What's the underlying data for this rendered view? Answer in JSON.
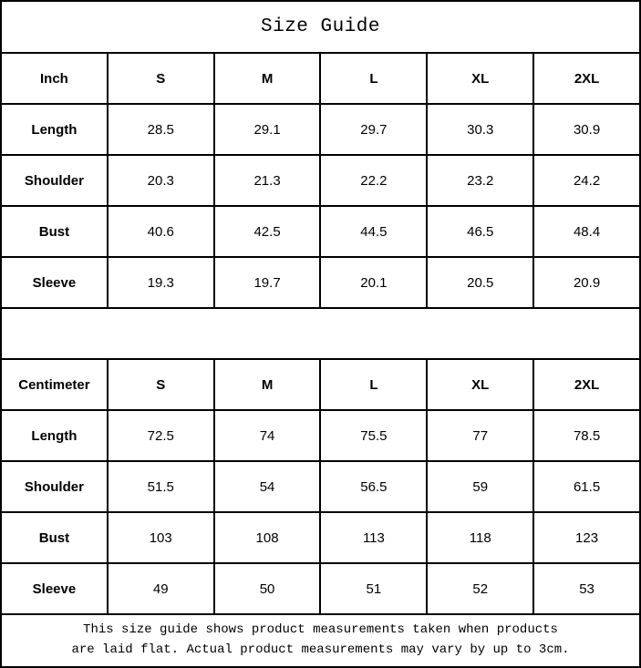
{
  "title": "Size Guide",
  "colors": {
    "background": "#ffffff",
    "border": "#000000",
    "text": "#000000"
  },
  "tables": {
    "inch": {
      "header": {
        "label": "Inch",
        "sizes": [
          "S",
          "M",
          "L",
          "XL",
          "2XL"
        ]
      },
      "rows": [
        {
          "label": "Length",
          "values": [
            "28.5",
            "29.1",
            "29.7",
            "30.3",
            "30.9"
          ]
        },
        {
          "label": "Shoulder",
          "values": [
            "20.3",
            "21.3",
            "22.2",
            "23.2",
            "24.2"
          ]
        },
        {
          "label": "Bust",
          "values": [
            "40.6",
            "42.5",
            "44.5",
            "46.5",
            "48.4"
          ]
        },
        {
          "label": "Sleeve",
          "values": [
            "19.3",
            "19.7",
            "20.1",
            "20.5",
            "20.9"
          ]
        }
      ]
    },
    "centimeter": {
      "header": {
        "label": "Centimeter",
        "sizes": [
          "S",
          "M",
          "L",
          "XL",
          "2XL"
        ]
      },
      "rows": [
        {
          "label": "Length",
          "values": [
            "72.5",
            "74",
            "75.5",
            "77",
            "78.5"
          ]
        },
        {
          "label": "Shoulder",
          "values": [
            "51.5",
            "54",
            "56.5",
            "59",
            "61.5"
          ]
        },
        {
          "label": "Bust",
          "values": [
            "103",
            "108",
            "113",
            "118",
            "123"
          ]
        },
        {
          "label": "Sleeve",
          "values": [
            "49",
            "50",
            "51",
            "52",
            "53"
          ]
        }
      ]
    }
  },
  "footer": {
    "line1": "This size guide shows product measurements taken when products",
    "line2": "are laid flat. Actual product measurements may vary by up to 3cm."
  }
}
